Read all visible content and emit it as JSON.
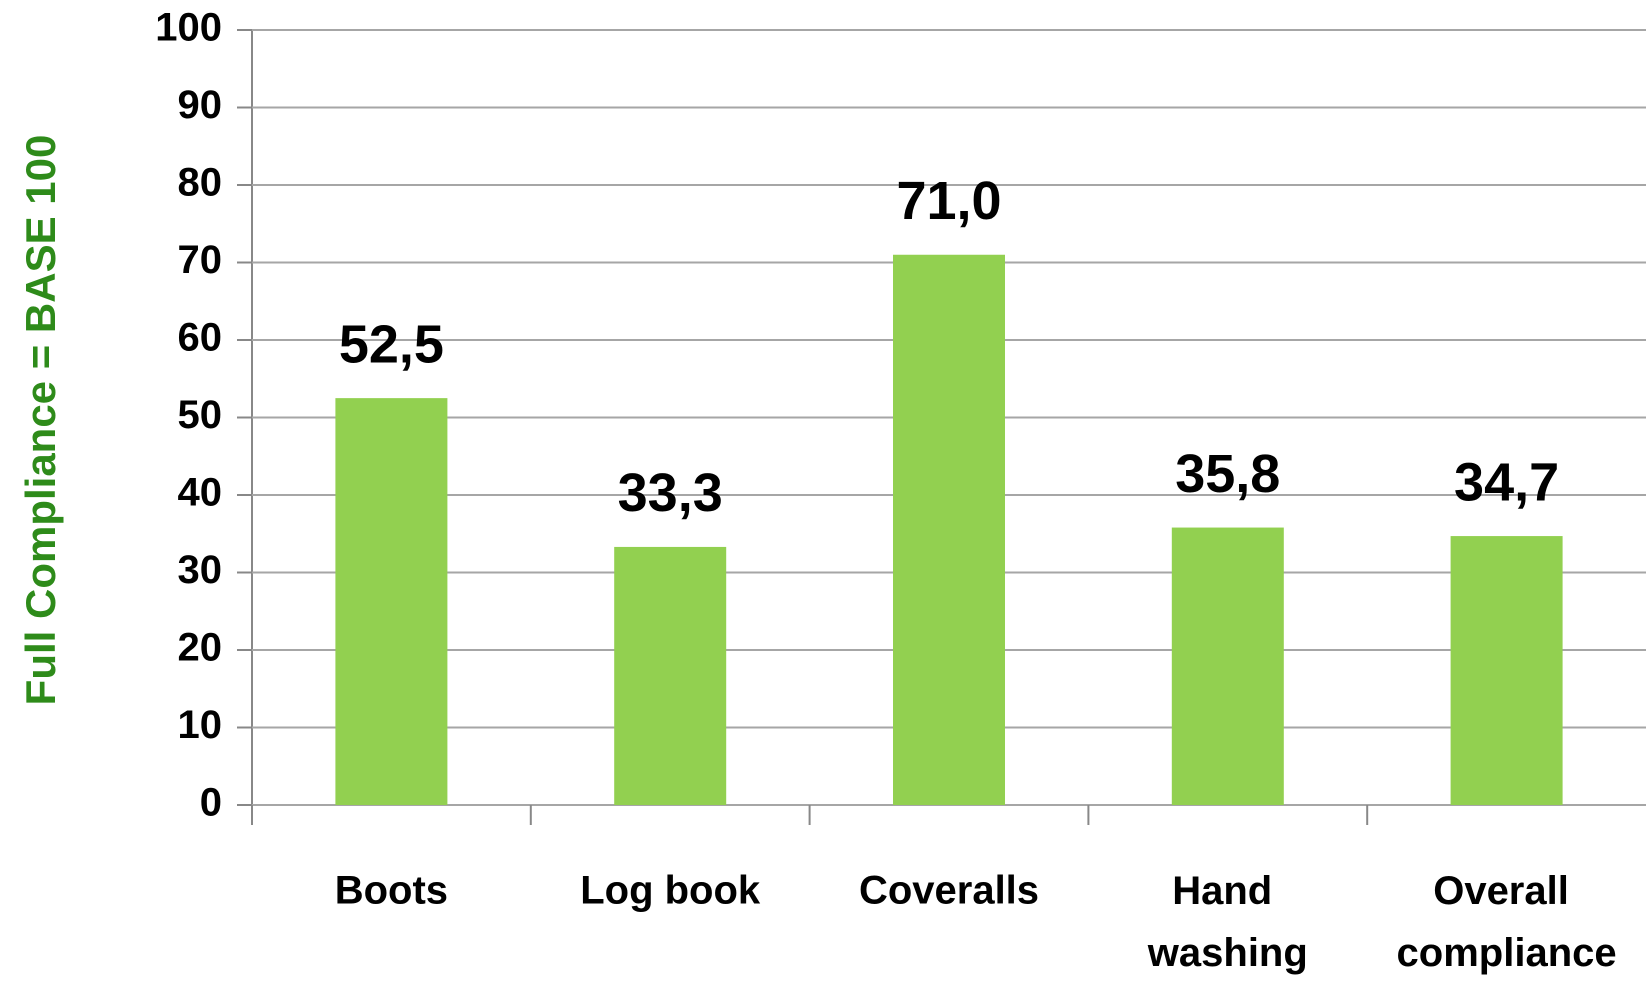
{
  "chart_data": {
    "type": "bar",
    "y_axis_label": "Full Compliance = BASE 100",
    "categories": [
      "Boots",
      "Log book",
      "Coveralls",
      "Hand washing",
      "Overall compliance"
    ],
    "values": [
      52.5,
      33.3,
      71.0,
      35.8,
      34.7
    ],
    "value_labels": [
      "52,5",
      "33,3",
      "71,0",
      "35,8",
      "34,7"
    ],
    "color": "#92d050",
    "ylim": [
      0,
      100
    ],
    "yticks": [
      0,
      10,
      20,
      30,
      40,
      50,
      60,
      70,
      80,
      90,
      100
    ],
    "grid": true
  }
}
